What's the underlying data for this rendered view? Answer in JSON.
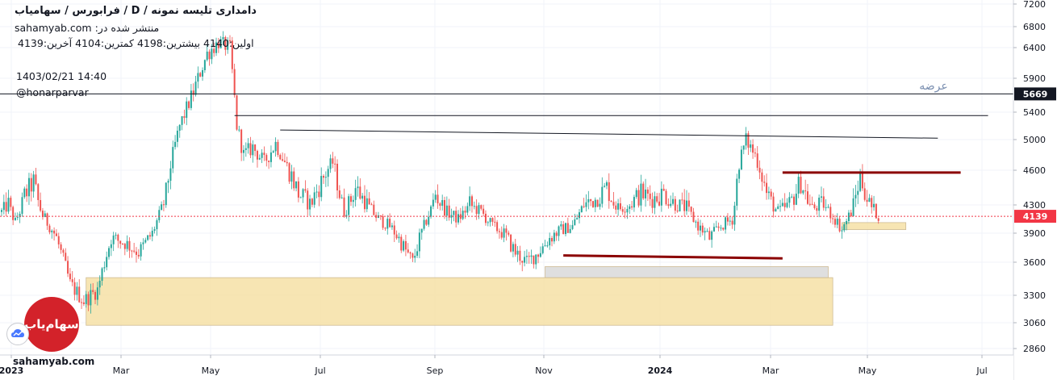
{
  "header": {
    "title": "دامداری تلیسه نمونه / D / فرابورس / سهامیاب",
    "published_on": "منتشر شده در: sahamyab.com",
    "ohlc": "اولین:4140  بیشترین:4198  کمترین:4104  آخرین:4139",
    "datetime": "1403/02/21 14:40",
    "username": "@honarparvar"
  },
  "footer": {
    "url": "sahamyab.com"
  },
  "logo": {
    "text": "سهام‌یاب",
    "icon": "sahamyab-logo"
  },
  "chart_data": {
    "type": "candlestick",
    "x_tick_labels": [
      "2023",
      "Mar",
      "May",
      "Jul",
      "Sep",
      "Nov",
      "2024",
      "Mar",
      "May",
      "Jul"
    ],
    "y_tick_labels": [
      "7200",
      "6800",
      "6400",
      "5900",
      "5400",
      "5000",
      "4600",
      "4300",
      "3900",
      "3600",
      "3300",
      "3060",
      "2860"
    ],
    "ylim": [
      2750,
      7250
    ],
    "price_labels": [
      {
        "text": "5669",
        "value": 5669,
        "color": "#131722"
      },
      {
        "text": "4139",
        "value": 4139,
        "color": "#f23645"
      }
    ],
    "annotations": [
      {
        "text": "عرضه",
        "value": 5700
      }
    ],
    "colors": {
      "up": "#26a69a",
      "down": "#ef5350",
      "resistance": "#8b0000",
      "support_zone": "#f7e3ab",
      "gray_zone": "#dcdcdc"
    },
    "anchors": [
      [
        0,
        4200
      ],
      [
        3,
        4300
      ],
      [
        6,
        4050
      ],
      [
        10,
        4380
      ],
      [
        14,
        4500
      ],
      [
        18,
        4150
      ],
      [
        24,
        3850
      ],
      [
        30,
        3400
      ],
      [
        36,
        3250
      ],
      [
        42,
        3350
      ],
      [
        48,
        3850
      ],
      [
        54,
        3800
      ],
      [
        60,
        3700
      ],
      [
        66,
        3900
      ],
      [
        72,
        4400
      ],
      [
        78,
        5200
      ],
      [
        84,
        5700
      ],
      [
        90,
        6300
      ],
      [
        95,
        6500
      ],
      [
        100,
        6400
      ],
      [
        103,
        5200
      ],
      [
        106,
        4800
      ],
      [
        110,
        4900
      ],
      [
        115,
        4700
      ],
      [
        120,
        4950
      ],
      [
        125,
        4650
      ],
      [
        130,
        4400
      ],
      [
        135,
        4300
      ],
      [
        140,
        4500
      ],
      [
        145,
        4700
      ],
      [
        150,
        4200
      ],
      [
        155,
        4450
      ],
      [
        160,
        4300
      ],
      [
        165,
        4100
      ],
      [
        170,
        4000
      ],
      [
        175,
        3800
      ],
      [
        180,
        3600
      ],
      [
        185,
        4000
      ],
      [
        190,
        4400
      ],
      [
        195,
        4200
      ],
      [
        200,
        4100
      ],
      [
        205,
        4300
      ],
      [
        210,
        4200
      ],
      [
        215,
        4000
      ],
      [
        220,
        3900
      ],
      [
        225,
        3700
      ],
      [
        230,
        3600
      ],
      [
        235,
        3700
      ],
      [
        240,
        3850
      ],
      [
        245,
        3950
      ],
      [
        250,
        4000
      ],
      [
        255,
        4300
      ],
      [
        260,
        4350
      ],
      [
        265,
        4450
      ],
      [
        270,
        4250
      ],
      [
        275,
        4300
      ],
      [
        280,
        4400
      ],
      [
        285,
        4350
      ],
      [
        290,
        4400
      ],
      [
        295,
        4300
      ],
      [
        300,
        4250
      ],
      [
        305,
        4000
      ],
      [
        310,
        3850
      ],
      [
        315,
        4000
      ],
      [
        320,
        4100
      ],
      [
        323,
        4700
      ],
      [
        326,
        5000
      ],
      [
        330,
        4800
      ],
      [
        335,
        4400
      ],
      [
        340,
        4200
      ],
      [
        345,
        4300
      ],
      [
        350,
        4500
      ],
      [
        355,
        4250
      ],
      [
        360,
        4300
      ],
      [
        365,
        4100
      ],
      [
        368,
        3950
      ],
      [
        372,
        4200
      ],
      [
        376,
        4550
      ],
      [
        380,
        4300
      ],
      [
        384,
        4150
      ]
    ],
    "hlines": [
      {
        "value": 5669,
        "color": "#131722",
        "dash": false
      },
      {
        "value": 4139,
        "color": "#f23645",
        "dash": true
      }
    ],
    "trendlines": [
      {
        "from": [
          102,
          5350
        ],
        "to": [
          432,
          5350
        ],
        "color": "#131722",
        "width": 1
      },
      {
        "from": [
          122,
          5140
        ],
        "to": [
          410,
          5020
        ],
        "color": "#131722",
        "width": 1
      },
      {
        "from": [
          342,
          4580
        ],
        "to": [
          420,
          4580
        ],
        "color": "#8b0000",
        "width": 3
      },
      {
        "from": [
          246,
          3670
        ],
        "to": [
          342,
          3640
        ],
        "color": "#8b0000",
        "width": 3
      }
    ],
    "zones": [
      {
        "x0": 37,
        "x1": 364,
        "y0": 3040,
        "y1": 3460,
        "color": "#f7e3ab"
      },
      {
        "x0": 238,
        "x1": 362,
        "y0": 3460,
        "y1": 3560,
        "color": "#dcdcdc"
      },
      {
        "x0": 368,
        "x1": 396,
        "y0": 3950,
        "y1": 4050,
        "color": "#f7e3ab"
      }
    ]
  }
}
